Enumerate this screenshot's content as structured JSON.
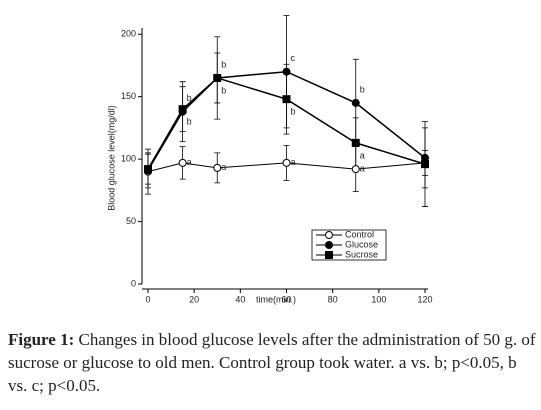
{
  "chart_data": {
    "type": "line",
    "xlabel": "time(min.)",
    "ylabel": "Blood glucose level(mg/dl)",
    "x": [
      0,
      15,
      30,
      60,
      90,
      120
    ],
    "xlim": [
      0,
      120
    ],
    "xticks": [
      0,
      20,
      40,
      60,
      80,
      100,
      120
    ],
    "ylim": [
      0,
      205
    ],
    "yticks": [
      0,
      50,
      100,
      150,
      200
    ],
    "legend": "lower right",
    "series": [
      {
        "name": "Control",
        "color": "#000000",
        "marker": "open-circle",
        "values": [
          90,
          97,
          93,
          97,
          92,
          97
        ],
        "errors": [
          18,
          13,
          12,
          14,
          18,
          10
        ],
        "letters": [
          null,
          "a",
          "a",
          "a",
          "a",
          null
        ]
      },
      {
        "name": "Glucose",
        "color": "#000000",
        "marker": "circle",
        "values": [
          91,
          138,
          165,
          170,
          145,
          101
        ],
        "errors": [
          14,
          24,
          33,
          45,
          35,
          24
        ],
        "letters": [
          null,
          "b",
          "b",
          "c",
          "b",
          null
        ]
      },
      {
        "name": "Sucrose",
        "color": "#000000",
        "marker": "square",
        "values": [
          92,
          140,
          165,
          148,
          113,
          96
        ],
        "errors": [
          12,
          18,
          20,
          28,
          20,
          34
        ],
        "letters": [
          null,
          "b",
          "b",
          "b",
          "a",
          null
        ]
      }
    ]
  },
  "caption": {
    "label": "Figure 1:",
    "text": "Changes in blood glucose levels after the administration of 50 g. of sucrose or glucose to old men. Control group took water. a vs. b; p<0.05, b vs. c; p<0.05."
  }
}
